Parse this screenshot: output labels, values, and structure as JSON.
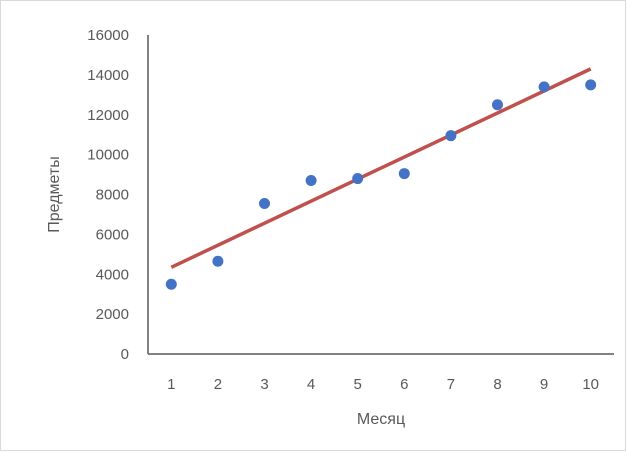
{
  "chart_data": {
    "type": "scatter",
    "title": "",
    "xlabel": "Месяц",
    "ylabel": "Предметы",
    "x": [
      1,
      2,
      3,
      4,
      5,
      6,
      7,
      8,
      9,
      10
    ],
    "xticks": [
      "1",
      "2",
      "3",
      "4",
      "5",
      "6",
      "7",
      "8",
      "9",
      "10"
    ],
    "xlim": [
      0.5,
      10.5
    ],
    "ylim": [
      0,
      16000
    ],
    "yticks": [
      "0",
      "2000",
      "4000",
      "6000",
      "8000",
      "10000",
      "12000",
      "14000",
      "16000"
    ],
    "grid": false,
    "legend": "none",
    "series": [
      {
        "type": "scatter",
        "color": "#4472c4",
        "values": [
          3500,
          4650,
          7550,
          8700,
          8800,
          9050,
          10950,
          12500,
          13400,
          13500
        ]
      },
      {
        "type": "line",
        "color": "#c0504d",
        "x": [
          1,
          10
        ],
        "values": [
          4350,
          14300
        ]
      }
    ]
  }
}
